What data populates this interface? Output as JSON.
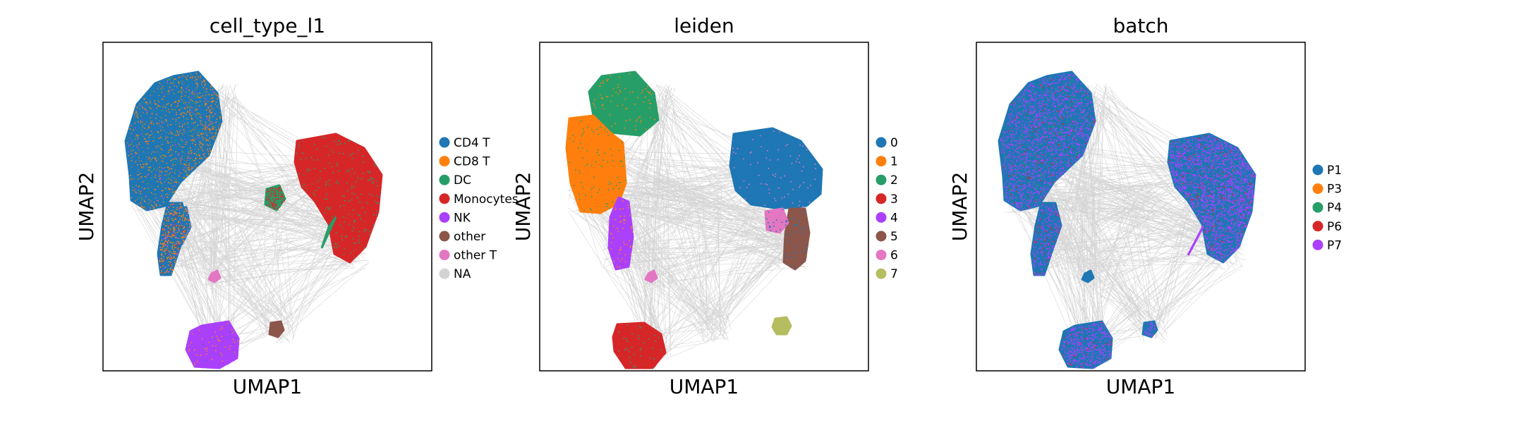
{
  "chart_data": [
    {
      "type": "scatter",
      "title": "cell_type_l1",
      "xlabel": "UMAP1",
      "ylabel": "UMAP2",
      "legend_position": "right",
      "grid": false,
      "ticks": false,
      "legend": [
        {
          "label": "CD4 T",
          "color": "#1f77b4"
        },
        {
          "label": "CD8 T",
          "color": "#ff7f0e"
        },
        {
          "label": "DC",
          "color": "#279e68"
        },
        {
          "label": "Monocytes",
          "color": "#d62728"
        },
        {
          "label": "NK",
          "color": "#aa40fc"
        },
        {
          "label": "other",
          "color": "#8c564b"
        },
        {
          "label": "other T",
          "color": "#e377c2"
        },
        {
          "label": "NA",
          "color": "#d3d3d3"
        }
      ]
    },
    {
      "type": "scatter",
      "title": "leiden",
      "xlabel": "UMAP1",
      "ylabel": "UMAP2",
      "legend_position": "right",
      "grid": false,
      "ticks": false,
      "legend": [
        {
          "label": "0",
          "color": "#1f77b4"
        },
        {
          "label": "1",
          "color": "#ff7f0e"
        },
        {
          "label": "2",
          "color": "#279e68"
        },
        {
          "label": "3",
          "color": "#d62728"
        },
        {
          "label": "4",
          "color": "#aa40fc"
        },
        {
          "label": "5",
          "color": "#8c564b"
        },
        {
          "label": "6",
          "color": "#e377c2"
        },
        {
          "label": "7",
          "color": "#b5bd61"
        }
      ]
    },
    {
      "type": "scatter",
      "title": "batch",
      "xlabel": "UMAP1",
      "ylabel": "UMAP2",
      "legend_position": "right",
      "grid": false,
      "ticks": false,
      "legend": [
        {
          "label": "P1",
          "color": "#1f77b4"
        },
        {
          "label": "P3",
          "color": "#ff7f0e"
        },
        {
          "label": "P4",
          "color": "#279e68"
        },
        {
          "label": "P6",
          "color": "#d62728"
        },
        {
          "label": "P7",
          "color": "#aa40fc"
        }
      ]
    }
  ]
}
